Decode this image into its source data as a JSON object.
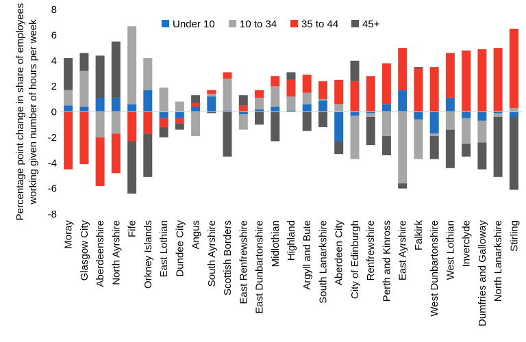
{
  "chart_data": {
    "type": "bar",
    "stacked": true,
    "ylabel": "Percentage point change in share of employees working given number of hours per week",
    "ylabel_lines": [
      "Percentage point change in share of employees",
      "working given number of hours per week"
    ],
    "ylim": [
      -8,
      8
    ],
    "yticks": [
      -8,
      -6,
      -4,
      -2,
      0,
      2,
      4,
      6,
      8
    ],
    "grid": false,
    "legend_position": "top",
    "categories": [
      "Moray",
      "Glasgow City",
      "Aberdeenshire",
      "North Ayrshire",
      "Fife",
      "Orkney Islands",
      "East Lothian",
      "Dundee City",
      "Angus",
      "South Ayrshire",
      "Scottish Borders",
      "East Renfrewshire",
      "East Dunbartonshire",
      "Midlothian",
      "Highland",
      "Argyll and Bute",
      "South Lanarkshire",
      "Aberdeen City",
      "City of Edinburgh",
      "Renfrewshire",
      "Perth and Kinross",
      "East Ayrshire",
      "Falkirk",
      "West Dunbartonshire",
      "West Lothian",
      "Inverclyde",
      "Dumfries and Galloway",
      "North Lanarkshire",
      "Stirling"
    ],
    "series": [
      {
        "name": "Under 10",
        "color": "#1f6fc5",
        "values": [
          0.5,
          0.4,
          1.1,
          1.1,
          0.6,
          1.7,
          -0.5,
          -0.5,
          0.4,
          1.2,
          0.1,
          -0.2,
          0.2,
          0.4,
          0.1,
          0.6,
          0.9,
          -2.3,
          -0.3,
          -0.1,
          0.6,
          1.7,
          -0.6,
          -1.7,
          1.1,
          -0.5,
          -0.7,
          -0.1,
          -0.4
        ]
      },
      {
        "name": "10 to 34",
        "color": "#a6a6a6",
        "values": [
          1.2,
          2.8,
          -2.0,
          -1.7,
          6.1,
          2.5,
          1.9,
          0.8,
          -1.9,
          0.2,
          2.5,
          -1.2,
          0.9,
          1.6,
          1.1,
          0.9,
          0.1,
          0.6,
          -3.4,
          -0.3,
          -1.9,
          -5.6,
          -3.1,
          -0.2,
          -1.4,
          -2.0,
          -1.7,
          -0.3,
          0.3
        ]
      },
      {
        "name": "35 to 44",
        "color": "#f0382b",
        "values": [
          -4.5,
          -4.1,
          -3.8,
          -3.1,
          -2.3,
          -1.7,
          -0.7,
          -0.4,
          0.3,
          0.3,
          0.5,
          0.5,
          0.6,
          0.8,
          1.3,
          1.4,
          1.4,
          1.9,
          2.4,
          2.8,
          3.2,
          3.3,
          3.4,
          3.5,
          3.5,
          4.8,
          4.9,
          5.0,
          6.2
        ]
      },
      {
        "name": "45+",
        "color": "#595959",
        "values": [
          2.5,
          1.4,
          3.3,
          4.4,
          -4.1,
          -3.4,
          -0.8,
          -0.5,
          0.6,
          -0.1,
          -3.5,
          0.8,
          -1.0,
          -2.3,
          0.6,
          -1.5,
          -1.2,
          -1.0,
          1.6,
          -2.2,
          -1.5,
          -0.4,
          0.1,
          -1.8,
          -3.0,
          -1.0,
          -2.1,
          -4.7,
          -5.7
        ]
      }
    ]
  }
}
